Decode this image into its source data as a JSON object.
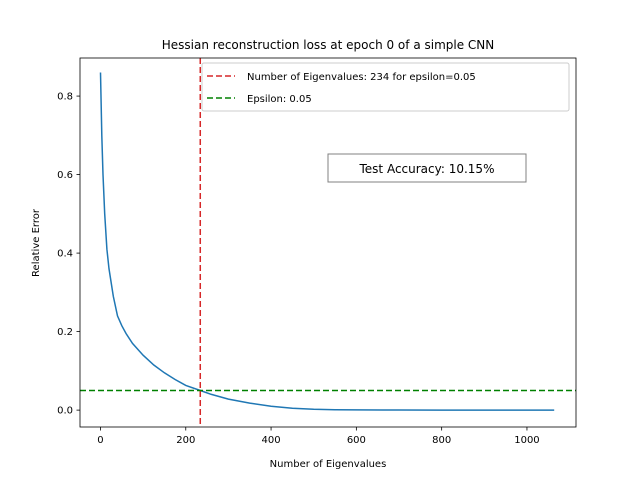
{
  "chart_data": {
    "type": "line",
    "title": "Hessian reconstruction loss at epoch 0 of a simple CNN",
    "xlabel": "Number of Eigenvalues",
    "ylabel": "Relative Error",
    "xlim": [
      -48,
      1115
    ],
    "ylim": [
      -0.043,
      0.897
    ],
    "xticks": [
      0,
      200,
      400,
      600,
      800,
      1000
    ],
    "yticks": [
      0.0,
      0.2,
      0.4,
      0.6,
      0.8
    ],
    "xtick_labels": [
      "0",
      "200",
      "400",
      "600",
      "800",
      "1000"
    ],
    "ytick_labels": [
      "0.0",
      "0.2",
      "0.4",
      "0.6",
      "0.8"
    ],
    "grid": false,
    "legend_position": "upper right",
    "series": [
      {
        "color": "#1f77b4",
        "x": [
          0,
          3,
          6,
          10,
          15,
          20,
          30,
          40,
          50,
          60,
          75,
          100,
          125,
          150,
          175,
          200,
          234,
          260,
          300,
          350,
          400,
          450,
          500,
          550,
          600,
          700,
          800,
          900,
          1000,
          1064
        ],
        "y": [
          0.86,
          0.7,
          0.6,
          0.5,
          0.41,
          0.36,
          0.29,
          0.24,
          0.215,
          0.195,
          0.17,
          0.14,
          0.115,
          0.095,
          0.078,
          0.063,
          0.05,
          0.04,
          0.028,
          0.018,
          0.01,
          0.005,
          0.002,
          0.001,
          0.0005,
          0.0002,
          0.0001,
          5e-05,
          2e-05,
          0.0
        ]
      }
    ],
    "reference_lines": [
      {
        "orientation": "vertical",
        "x": 234,
        "color": "#d62728",
        "label": "Number of Eigenvalues: 234 for epsilon=0.05"
      },
      {
        "orientation": "horizontal",
        "y": 0.05,
        "color": "#008000",
        "label": "Epsilon: 0.05"
      }
    ],
    "annotation": {
      "text": "Test Accuracy: 10.15%",
      "x": 800,
      "y": 0.615
    }
  }
}
